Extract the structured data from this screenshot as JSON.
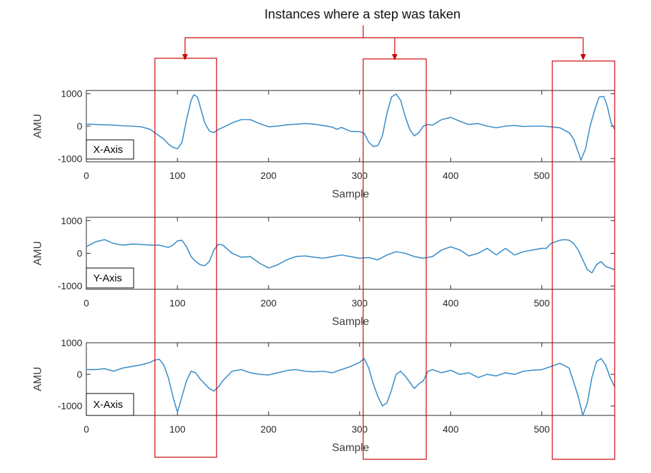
{
  "annotation": {
    "title": "Instances where a step was taken",
    "highlight_color": "#cc0000"
  },
  "colors": {
    "line": "#3d8fc8",
    "axis": "#262626"
  },
  "chart_data": [
    {
      "type": "line",
      "panel_label": "X-Axis",
      "xlabel": "Sample",
      "ylabel": "AMU",
      "xlim": [
        0,
        580
      ],
      "ylim": [
        -1100,
        1100
      ],
      "xticks": [
        0,
        100,
        200,
        300,
        400,
        500
      ],
      "yticks": [
        -1000,
        0,
        1000
      ],
      "x": [
        0,
        10,
        20,
        30,
        40,
        50,
        60,
        70,
        75,
        80,
        85,
        90,
        95,
        100,
        105,
        110,
        115,
        118,
        122,
        126,
        130,
        135,
        140,
        145,
        150,
        160,
        170,
        180,
        190,
        200,
        210,
        220,
        230,
        240,
        250,
        260,
        270,
        275,
        280,
        285,
        290,
        300,
        305,
        310,
        315,
        320,
        325,
        330,
        335,
        340,
        345,
        350,
        355,
        360,
        365,
        370,
        375,
        380,
        390,
        400,
        410,
        420,
        430,
        440,
        450,
        460,
        470,
        480,
        490,
        500,
        510,
        520,
        530,
        535,
        540,
        543,
        548,
        553,
        558,
        563,
        568,
        572,
        576,
        580
      ],
      "y": [
        60,
        50,
        40,
        30,
        10,
        0,
        -20,
        -100,
        -200,
        -300,
        -400,
        -550,
        -650,
        -700,
        -500,
        200,
        800,
        970,
        900,
        500,
        100,
        -150,
        -200,
        -100,
        -40,
        100,
        200,
        200,
        80,
        -20,
        0,
        40,
        60,
        80,
        60,
        20,
        -30,
        -100,
        -40,
        -100,
        -160,
        -170,
        -220,
        -500,
        -630,
        -600,
        -300,
        400,
        900,
        990,
        800,
        300,
        -100,
        -300,
        -200,
        0,
        50,
        30,
        200,
        270,
        150,
        50,
        80,
        0,
        -50,
        0,
        20,
        -10,
        0,
        0,
        -20,
        -50,
        -200,
        -400,
        -800,
        -1050,
        -700,
        0,
        500,
        900,
        920,
        600,
        100,
        -100
      ]
    },
    {
      "type": "line",
      "panel_label": "Y-Axis",
      "xlabel": "Sample",
      "ylabel": "AMU",
      "xlim": [
        0,
        580
      ],
      "ylim": [
        -1100,
        1100
      ],
      "xticks": [
        0,
        100,
        200,
        300,
        400,
        500
      ],
      "yticks": [
        -1000,
        0,
        1000
      ],
      "x": [
        0,
        10,
        20,
        30,
        40,
        50,
        60,
        70,
        80,
        90,
        95,
        100,
        105,
        110,
        115,
        120,
        125,
        130,
        135,
        140,
        145,
        150,
        160,
        170,
        180,
        190,
        200,
        210,
        220,
        230,
        240,
        250,
        260,
        270,
        280,
        290,
        300,
        310,
        320,
        330,
        340,
        350,
        360,
        370,
        380,
        390,
        400,
        410,
        420,
        430,
        440,
        450,
        460,
        470,
        480,
        490,
        500,
        505,
        510,
        515,
        520,
        525,
        530,
        535,
        540,
        545,
        550,
        555,
        560,
        565,
        570,
        580
      ],
      "y": [
        200,
        350,
        420,
        300,
        250,
        280,
        270,
        250,
        250,
        180,
        250,
        380,
        400,
        200,
        -100,
        -250,
        -350,
        -380,
        -250,
        100,
        280,
        250,
        0,
        -120,
        -100,
        -300,
        -450,
        -350,
        -200,
        -100,
        -80,
        -120,
        -150,
        -100,
        -50,
        -100,
        -150,
        -130,
        -200,
        -50,
        50,
        0,
        -100,
        -150,
        -100,
        100,
        200,
        100,
        -80,
        0,
        150,
        -50,
        150,
        -50,
        50,
        100,
        150,
        150,
        300,
        350,
        400,
        420,
        400,
        300,
        100,
        -200,
        -500,
        -600,
        -350,
        -250,
        -400,
        -500
      ]
    },
    {
      "type": "line",
      "panel_label": "X-Axis",
      "xlabel": "Sample",
      "ylabel": "AMU",
      "xlim": [
        0,
        580
      ],
      "ylim": [
        -1300,
        1000
      ],
      "xticks": [
        0,
        100,
        200,
        300,
        400,
        500
      ],
      "yticks": [
        -1000,
        0,
        1000
      ],
      "x": [
        0,
        10,
        20,
        30,
        40,
        50,
        60,
        70,
        75,
        80,
        85,
        90,
        95,
        100,
        105,
        110,
        115,
        120,
        125,
        130,
        135,
        140,
        145,
        150,
        160,
        170,
        180,
        190,
        200,
        210,
        220,
        230,
        240,
        250,
        260,
        270,
        280,
        290,
        300,
        305,
        310,
        315,
        320,
        325,
        330,
        335,
        340,
        345,
        350,
        355,
        360,
        365,
        370,
        375,
        380,
        390,
        400,
        410,
        420,
        430,
        440,
        450,
        460,
        470,
        480,
        490,
        500,
        510,
        515,
        520,
        530,
        540,
        545,
        550,
        555,
        560,
        565,
        570,
        575,
        580
      ],
      "y": [
        150,
        150,
        180,
        100,
        200,
        250,
        300,
        380,
        450,
        480,
        300,
        -100,
        -700,
        -1200,
        -700,
        -200,
        100,
        50,
        -150,
        -300,
        -450,
        -530,
        -400,
        -200,
        100,
        150,
        50,
        0,
        -20,
        50,
        120,
        150,
        100,
        80,
        100,
        50,
        150,
        250,
        380,
        500,
        200,
        -300,
        -700,
        -1000,
        -900,
        -500,
        0,
        100,
        -50,
        -250,
        -450,
        -300,
        -200,
        100,
        150,
        50,
        130,
        0,
        50,
        -100,
        0,
        -50,
        50,
        0,
        100,
        130,
        150,
        250,
        300,
        350,
        200,
        -700,
        -1300,
        -900,
        -100,
        400,
        500,
        300,
        -100,
        -400
      ]
    }
  ]
}
